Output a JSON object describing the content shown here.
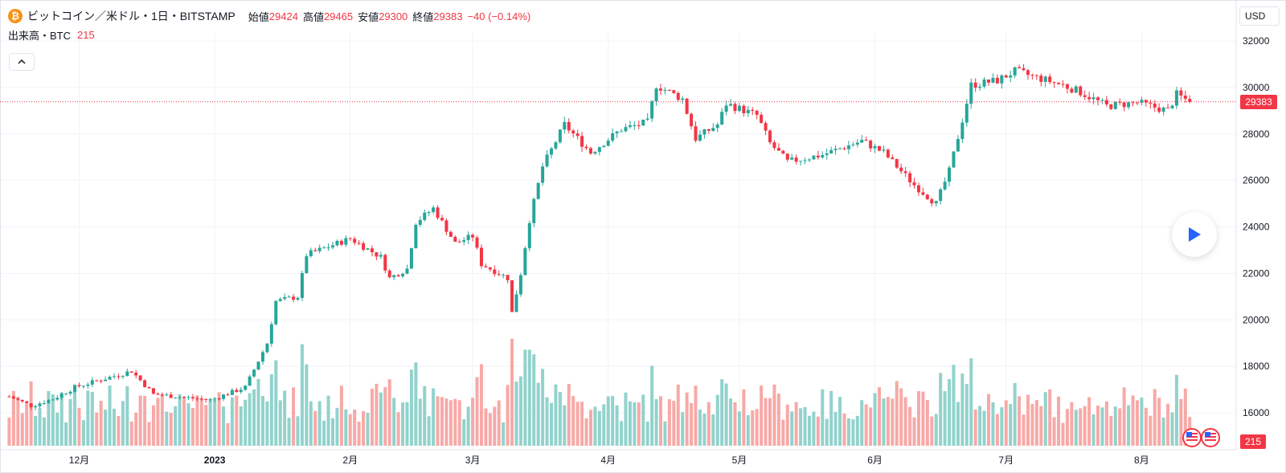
{
  "legend": {
    "symbol": "ビットコイン／米ドル・1日・BITSTAMP",
    "open_label": "始値",
    "open": "29424",
    "high_label": "高値",
    "high": "29465",
    "low_label": "安値",
    "low": "29300",
    "close_label": "終値",
    "close": "29383",
    "change": "−40 (−0.14%)",
    "volume_label": "出来高・BTC",
    "volume": "215"
  },
  "currency": "USD",
  "price_badge": "29383",
  "volume_badge": "215",
  "icons": {
    "logo": "bitcoin-icon",
    "collapse": "chevron-up-icon",
    "play": "play-icon",
    "events": "us-flag-icon"
  },
  "colors": {
    "up": "#26a69a",
    "down": "#f23645",
    "up_volume": "#92d2cc",
    "down_volume": "#f7a9a7"
  },
  "chart_data": {
    "type": "candlestick",
    "y_range": [
      15000,
      32500
    ],
    "y_ticks": [
      "32000",
      "30000",
      "28000",
      "26000",
      "24000",
      "22000",
      "20000",
      "18000",
      "16000"
    ],
    "x_ticks": [
      "12月",
      "2023",
      "2月",
      "3月",
      "4月",
      "5月",
      "6月",
      "7月",
      "8月"
    ],
    "current_price": 29383,
    "anchors": [
      [
        "2022-11-15",
        16700
      ],
      [
        "2022-11-20",
        16300
      ],
      [
        "2022-11-25",
        16600
      ],
      [
        "2022-11-30",
        17100
      ],
      [
        "2022-12-13",
        17800
      ],
      [
        "2022-12-18",
        16800
      ],
      [
        "2022-12-31",
        16550
      ],
      [
        "2023-01-08",
        17100
      ],
      [
        "2023-01-13",
        19000
      ],
      [
        "2023-01-15",
        20800
      ],
      [
        "2023-01-20",
        21000
      ],
      [
        "2023-01-22",
        22800
      ],
      [
        "2023-02-01",
        23500
      ],
      [
        "2023-02-08",
        22700
      ],
      [
        "2023-02-10",
        21800
      ],
      [
        "2023-02-14",
        22200
      ],
      [
        "2023-02-16",
        24200
      ],
      [
        "2023-02-20",
        24800
      ],
      [
        "2023-02-25",
        23300
      ],
      [
        "2023-03-01",
        23600
      ],
      [
        "2023-03-03",
        22400
      ],
      [
        "2023-03-09",
        21800
      ],
      [
        "2023-03-10",
        20300
      ],
      [
        "2023-03-12",
        22000
      ],
      [
        "2023-03-14",
        24300
      ],
      [
        "2023-03-17",
        26600
      ],
      [
        "2023-03-22",
        28400
      ],
      [
        "2023-03-28",
        27200
      ],
      [
        "2023-04-04",
        28200
      ],
      [
        "2023-04-10",
        28500
      ],
      [
        "2023-04-12",
        30100
      ],
      [
        "2023-04-18",
        29500
      ],
      [
        "2023-04-21",
        27800
      ],
      [
        "2023-04-26",
        28400
      ],
      [
        "2023-04-28",
        29300
      ],
      [
        "2023-05-05",
        28800
      ],
      [
        "2023-05-08",
        27600
      ],
      [
        "2023-05-12",
        26800
      ],
      [
        "2023-05-20",
        27100
      ],
      [
        "2023-05-29",
        27700
      ],
      [
        "2023-06-03",
        27200
      ],
      [
        "2023-06-10",
        25800
      ],
      [
        "2023-06-15",
        25000
      ],
      [
        "2023-06-18",
        26400
      ],
      [
        "2023-06-21",
        28600
      ],
      [
        "2023-06-23",
        30100
      ],
      [
        "2023-06-29",
        30300
      ],
      [
        "2023-07-03",
        30700
      ],
      [
        "2023-07-14",
        30100
      ],
      [
        "2023-07-18",
        29800
      ],
      [
        "2023-07-24",
        29200
      ],
      [
        "2023-07-31",
        29350
      ],
      [
        "2023-08-07",
        29000
      ],
      [
        "2023-08-09",
        29700
      ],
      [
        "2023-08-12",
        29383
      ]
    ],
    "volume_bars": [
      4,
      2,
      7,
      3,
      6,
      5,
      1,
      2,
      8,
      4,
      3,
      5,
      1,
      4,
      3,
      2,
      1,
      3,
      2,
      4,
      6,
      3,
      2,
      1,
      4,
      2,
      3,
      5,
      6,
      3
    ]
  }
}
